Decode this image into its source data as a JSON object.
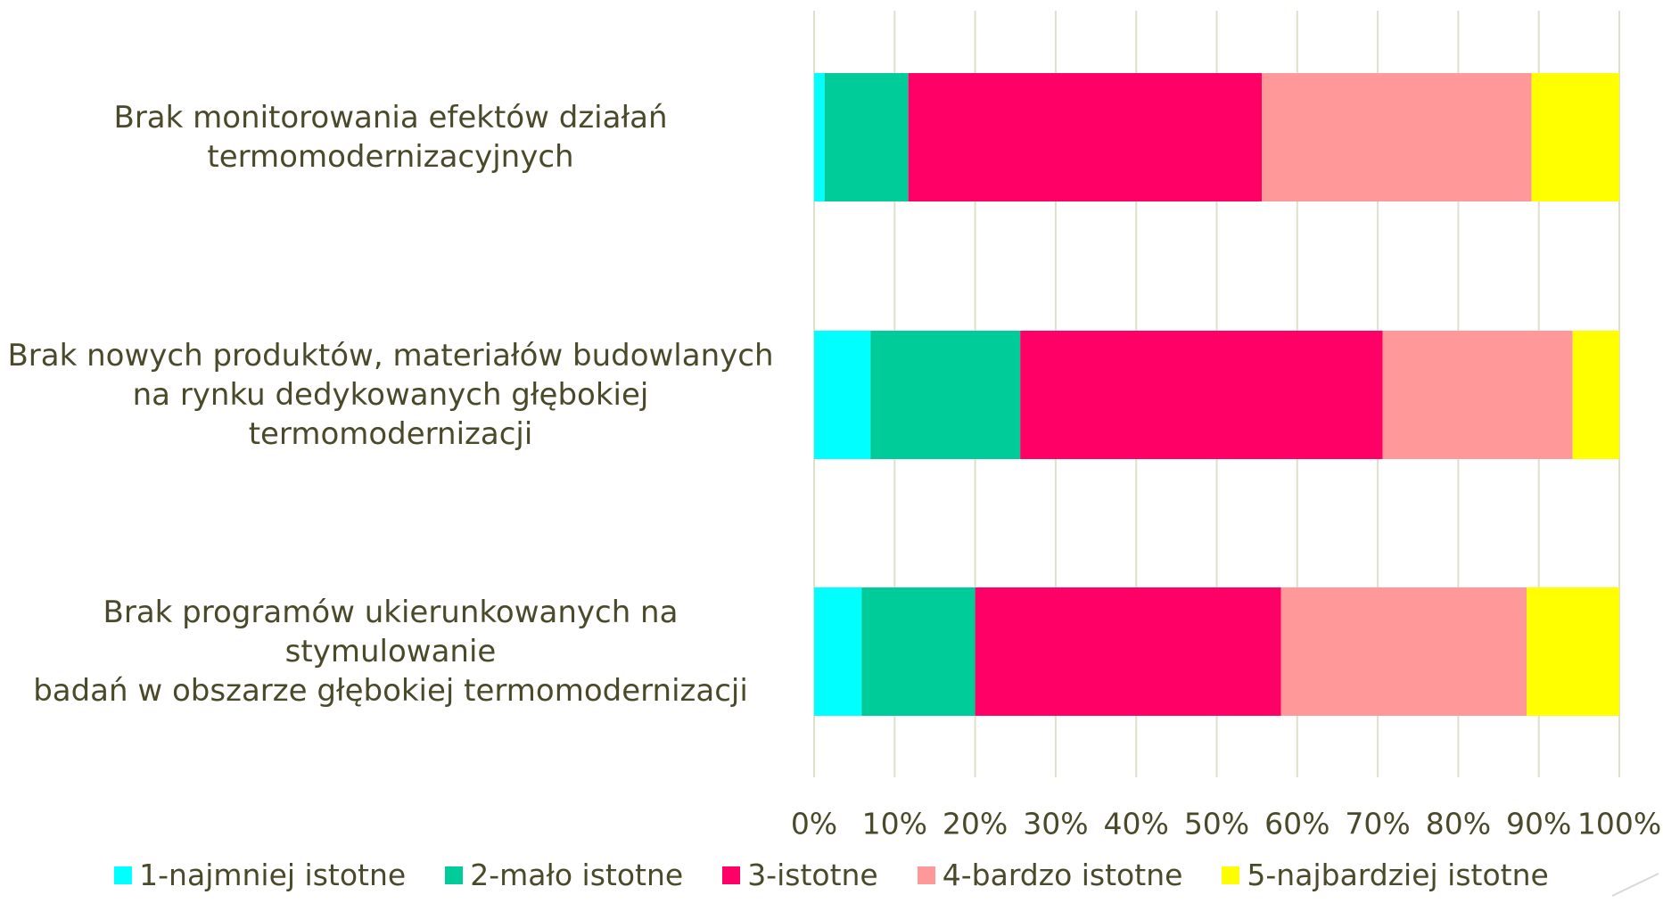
{
  "chart_data": {
    "type": "stacked_barh",
    "categories": [
      "Brak monitorowania efektów działań\ntermomodernizacyjnych",
      "Brak nowych produktów, materiałów budowlanych\nna rynku dedykowanych głębokiej\ntermomodernizacji",
      "Brak programów ukierunkowanych na stymulowanie\nbadań w obszarze głębokiej termomodernizacji"
    ],
    "series": [
      {
        "name": "1-najmniej istotne",
        "color": "#00ffff",
        "values": [
          1.3,
          7.0,
          5.9
        ]
      },
      {
        "name": "2-mało istotne",
        "color": "#00cc99",
        "values": [
          10.4,
          18.6,
          14.1
        ]
      },
      {
        "name": "3-istotne",
        "color": "#ff0066",
        "values": [
          43.9,
          45.0,
          38.0
        ]
      },
      {
        "name": "4-bardzo istotne",
        "color": "#ff9999",
        "values": [
          33.5,
          23.6,
          30.5
        ]
      },
      {
        "name": "5-najbardziej istotne",
        "color": "#ffff00",
        "values": [
          10.9,
          5.8,
          11.5
        ]
      }
    ],
    "xlim": [
      0,
      100
    ],
    "xticks": [
      {
        "value": 0,
        "label": "0%"
      },
      {
        "value": 10,
        "label": "10%"
      },
      {
        "value": 20,
        "label": "20%"
      },
      {
        "value": 30,
        "label": "30%"
      },
      {
        "value": 40,
        "label": "40%"
      },
      {
        "value": 50,
        "label": "50%"
      },
      {
        "value": 60,
        "label": "60%"
      },
      {
        "value": 70,
        "label": "70%"
      },
      {
        "value": 80,
        "label": "80%"
      },
      {
        "value": 90,
        "label": "90%"
      },
      {
        "value": 100,
        "label": "100%"
      }
    ],
    "grid": true
  }
}
